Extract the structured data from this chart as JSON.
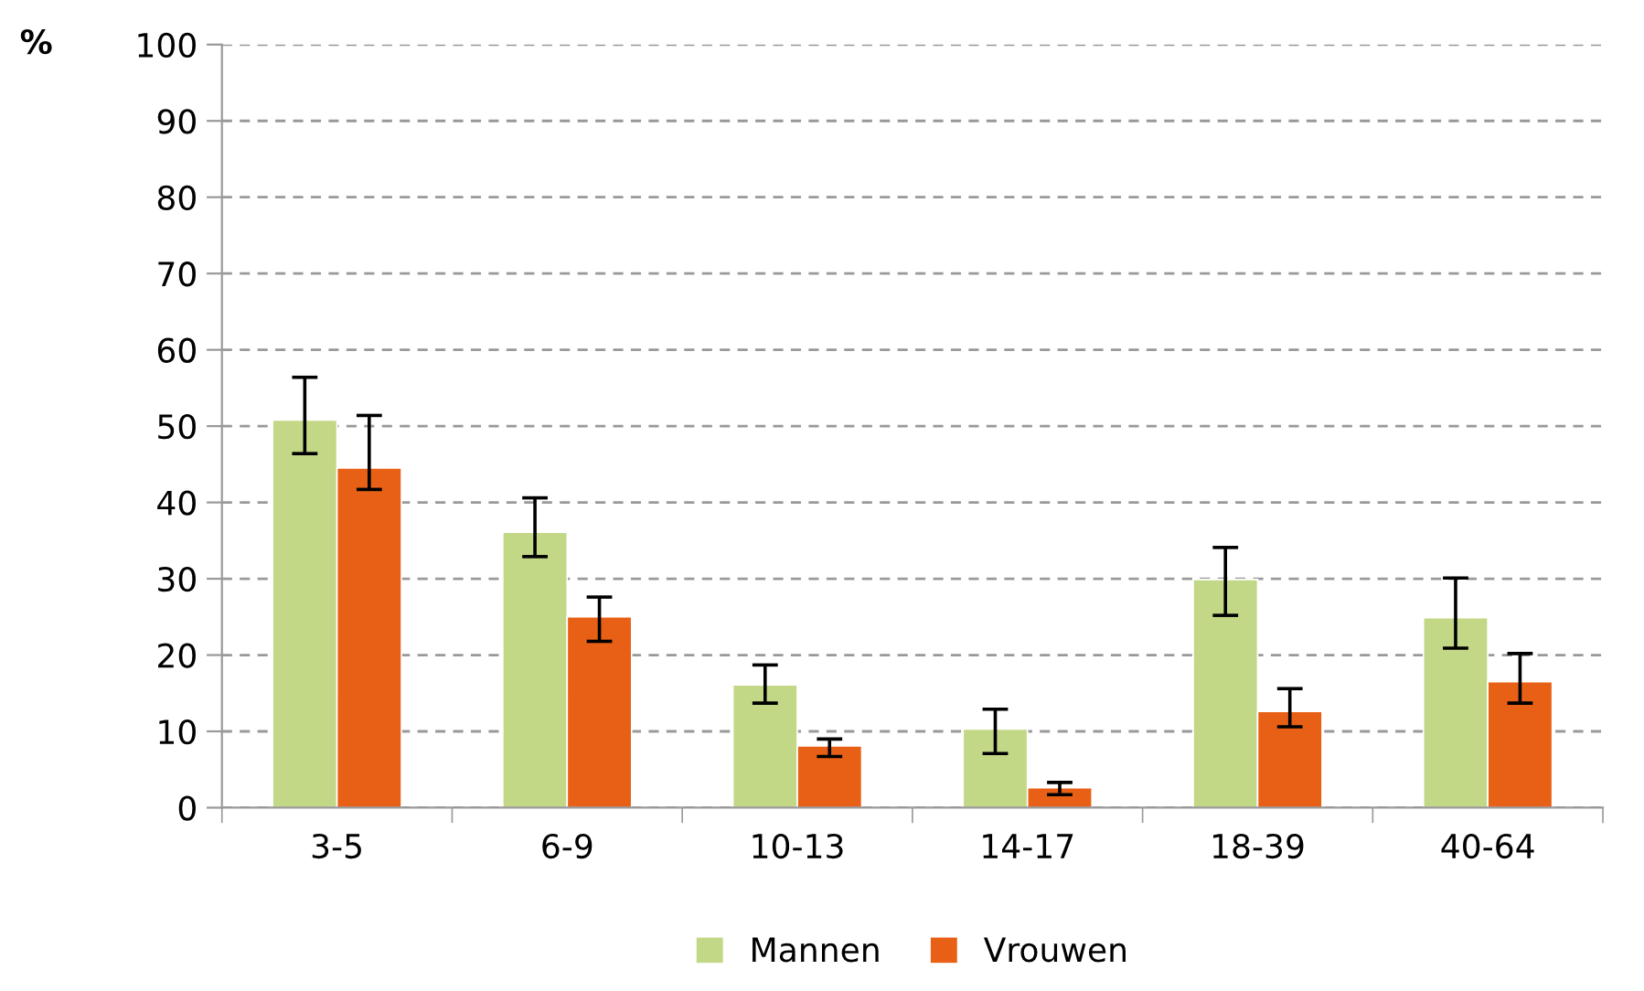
{
  "chart_data": {
    "type": "bar",
    "ylabel": "%",
    "categories": [
      "3-5",
      "6-9",
      "10-13",
      "14-17",
      "18-39",
      "40-64"
    ],
    "series": [
      {
        "name": "Mannen",
        "color": "#c3d887",
        "values": [
          50.8,
          36.1,
          16.1,
          10.3,
          29.9,
          24.9
        ],
        "errors": [
          [
            46.4,
            56.4
          ],
          [
            32.9,
            40.6
          ],
          [
            13.7,
            18.7
          ],
          [
            7.1,
            12.9
          ],
          [
            25.2,
            34.1
          ],
          [
            20.9,
            30.1
          ]
        ]
      },
      {
        "name": "Vrouwen",
        "color": "#e86015",
        "values": [
          44.5,
          25.0,
          8.1,
          2.6,
          12.6,
          16.5
        ],
        "errors": [
          [
            41.7,
            51.4
          ],
          [
            21.8,
            27.6
          ],
          [
            6.7,
            9.0
          ],
          [
            1.7,
            3.3
          ],
          [
            10.6,
            15.6
          ],
          [
            13.7,
            20.2
          ]
        ]
      }
    ],
    "ylim": [
      0,
      100
    ],
    "yticks": [
      0,
      10,
      20,
      30,
      40,
      50,
      60,
      70,
      80,
      90,
      100
    ],
    "grid": "y",
    "legend": "bottom"
  }
}
